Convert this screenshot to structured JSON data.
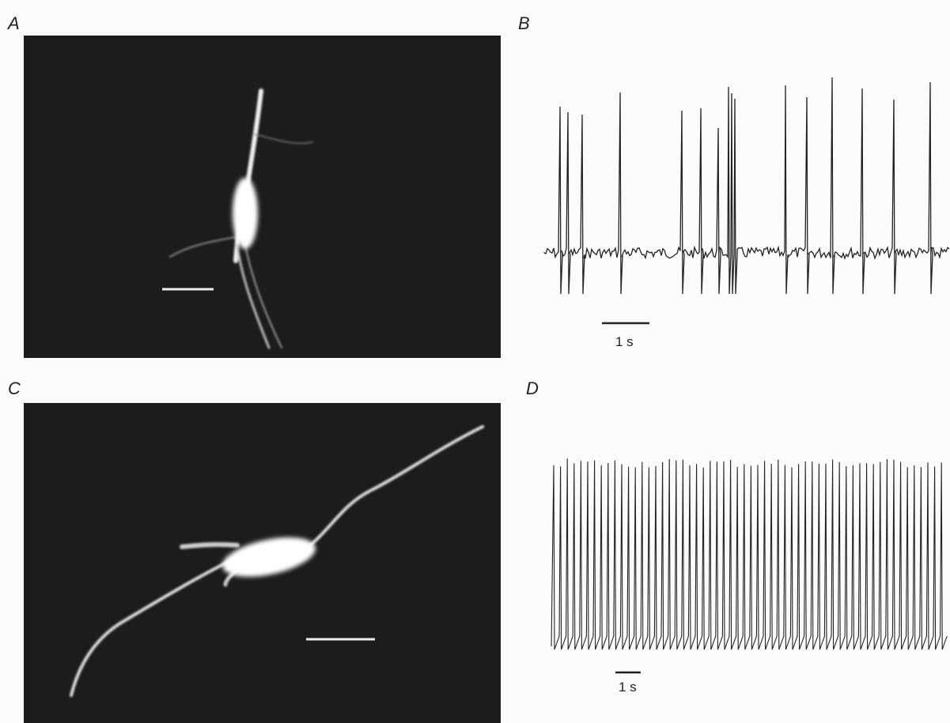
{
  "panels": [
    {
      "label": "A"
    },
    {
      "label": "B",
      "scale_label": "1 s"
    },
    {
      "label": "C"
    },
    {
      "label": "D",
      "scale_label": "1 s"
    }
  ]
}
